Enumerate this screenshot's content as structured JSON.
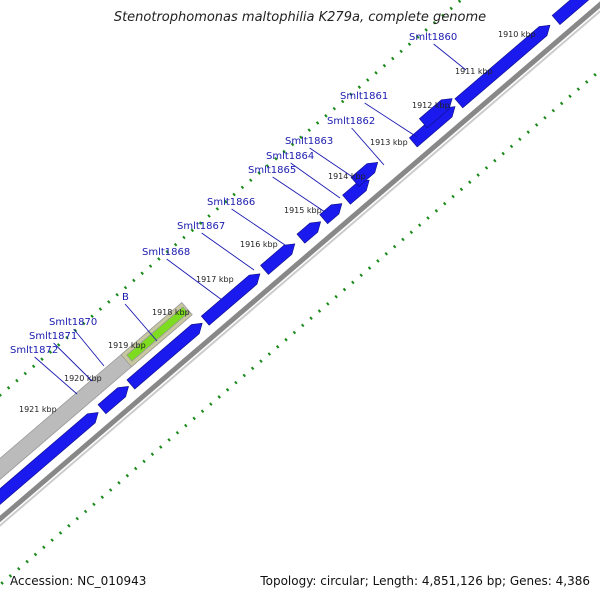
{
  "title": "Stenotrophomonas maltophilia K279a, complete genome",
  "footer": {
    "accession_label": "Accession:",
    "accession": "NC_010943",
    "topology_label": "Topology:",
    "topology": "circular",
    "length_label": "Length:",
    "length": "4,851,126 bp",
    "genes_label": "Genes:",
    "genes": "4,386"
  },
  "colors": {
    "gene": "#1a1aee",
    "gene_label": "#1a1ab0",
    "selected_region": "#7ddc1f",
    "ruler_ticks": "#1a8a1a",
    "backbone": "#888888",
    "shaded_region": "#bbbbbb"
  },
  "ruler": {
    "tick_labels": [
      "1910 kbp",
      "1911 kbp",
      "1912 kbp",
      "1913 kbp",
      "1914 kbp",
      "1915 kbp",
      "1916 kbp",
      "1917 kbp",
      "1918 kbp",
      "1919 kbp",
      "1920 kbp",
      "1921 kbp"
    ]
  },
  "gene_labels": [
    "Smlt1860",
    "Smlt1861",
    "Smlt1862",
    "Smlt1863",
    "Smlt1864",
    "Smlt1865",
    "Smlt1866",
    "Smlt1867",
    "Smlt1868",
    "B",
    "Smlt1870",
    "Smlt1871",
    "Smlt1872"
  ]
}
